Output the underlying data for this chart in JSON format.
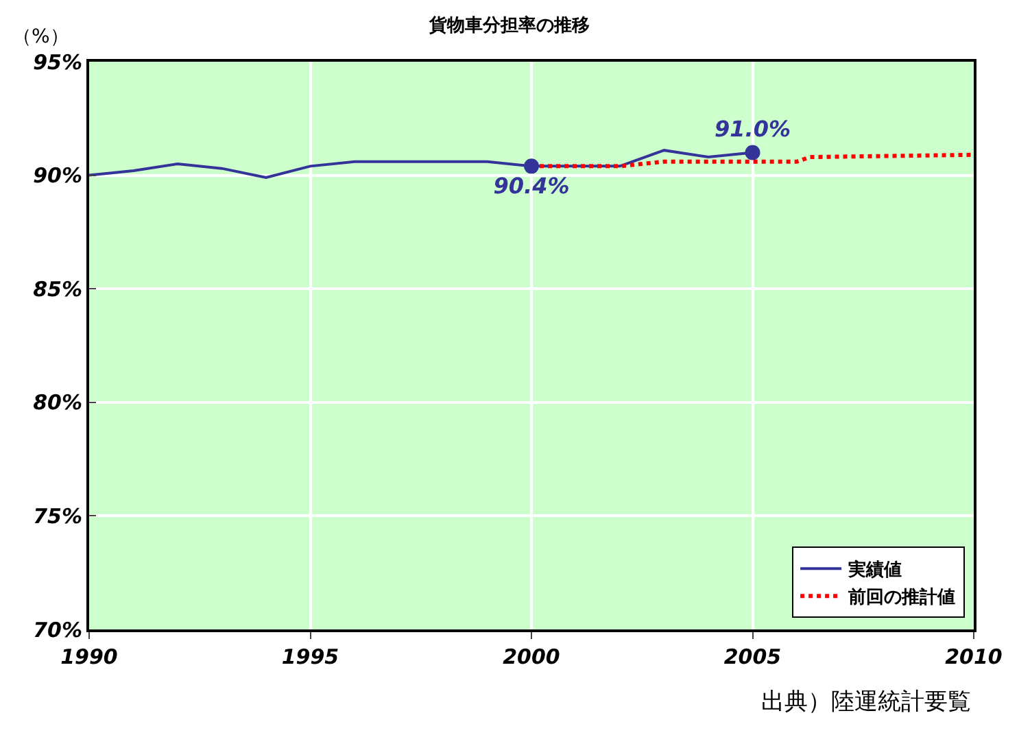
{
  "chart_data": {
    "type": "line",
    "title": "貨物車分担率の推移",
    "ylabel": "（%）",
    "annotations": [
      "出典）陸運統計要覧"
    ],
    "xlim": [
      1990,
      2010
    ],
    "xticks": [
      1990,
      1995,
      2000,
      2005,
      2010
    ],
    "ylim": [
      70,
      95
    ],
    "yticks": [
      {
        "value": 70,
        "label": "70%"
      },
      {
        "value": 75,
        "label": "75%"
      },
      {
        "value": 80,
        "label": "80%"
      },
      {
        "value": 85,
        "label": "85%"
      },
      {
        "value": 90,
        "label": "90%"
      },
      {
        "value": 95,
        "label": "95%"
      }
    ],
    "grid": true,
    "legend": "bottom right",
    "series": [
      {
        "name": "実績値",
        "color": "#333399",
        "line_style": "solid",
        "marker": "none",
        "x": [
          1990,
          1991,
          1992,
          1993,
          1994,
          1995,
          1996,
          1997,
          1998,
          1999,
          2000,
          2001,
          2002,
          2003,
          2004,
          2005
        ],
        "values": [
          90.0,
          90.2,
          90.5,
          90.3,
          89.9,
          90.4,
          90.6,
          90.6,
          90.6,
          90.6,
          90.4,
          90.4,
          90.4,
          91.1,
          90.8,
          91.0
        ]
      },
      {
        "name": "前回の推計値",
        "color": "#ff0000",
        "line_style": "dotted",
        "marker": "none",
        "x": [
          2000,
          2002,
          2003,
          2006,
          2006.3,
          2010
        ],
        "values": [
          90.4,
          90.4,
          90.6,
          90.6,
          90.8,
          90.9
        ]
      },
      {
        "type": "scatter",
        "color": "#333399",
        "marker": "circle",
        "x": [
          2000,
          2005
        ],
        "values": [
          90.4,
          91.0
        ],
        "value_labels": [
          "90.4%",
          "91.0%"
        ]
      }
    ]
  }
}
